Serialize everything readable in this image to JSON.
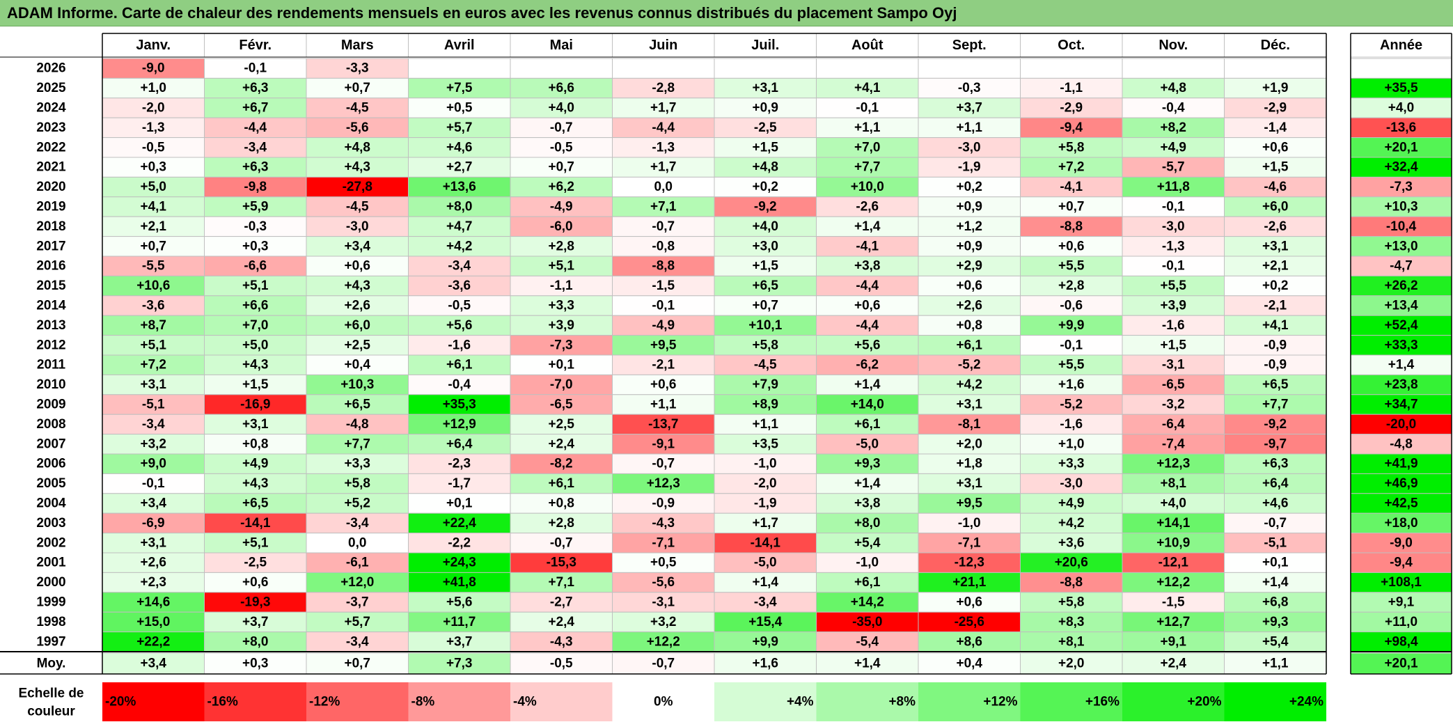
{
  "title": "ADAM Informe. Carte de chaleur des rendements mensuels en euros avec les revenus connus distribués du placement Sampo Oyj",
  "colors": {
    "negative_max": "#ff0000",
    "neutral": "#ffffff",
    "positive_max": "#00ee00",
    "title_bar": "#8fce82",
    "grid": "#bfbfbf"
  },
  "chart_data": {
    "type": "heatmap",
    "months": [
      "Janv.",
      "Févr.",
      "Mars",
      "Avril",
      "Mai",
      "Juin",
      "Juil.",
      "Août",
      "Sept.",
      "Oct.",
      "Nov.",
      "Déc."
    ],
    "year_header": "Année",
    "rows": [
      {
        "year": "2026",
        "values": [
          -9.0,
          -0.1,
          -3.3,
          null,
          null,
          null,
          null,
          null,
          null,
          null,
          null,
          null
        ],
        "annual": null
      },
      {
        "year": "2025",
        "values": [
          1.0,
          6.3,
          0.7,
          7.5,
          6.6,
          -2.8,
          3.1,
          4.1,
          -0.3,
          -1.1,
          4.8,
          1.9
        ],
        "annual": 35.5
      },
      {
        "year": "2024",
        "values": [
          -2.0,
          6.7,
          -4.5,
          0.5,
          4.0,
          1.7,
          0.9,
          -0.1,
          3.7,
          -2.9,
          -0.4,
          -2.9
        ],
        "annual": 4.0
      },
      {
        "year": "2023",
        "values": [
          -1.3,
          -4.4,
          -5.6,
          5.7,
          -0.7,
          -4.4,
          -2.5,
          1.1,
          1.1,
          -9.4,
          8.2,
          -1.4
        ],
        "annual": -13.6
      },
      {
        "year": "2022",
        "values": [
          -0.5,
          -3.4,
          4.8,
          4.6,
          -0.5,
          -1.3,
          1.5,
          7.0,
          -3.0,
          5.8,
          4.9,
          0.6
        ],
        "annual": 20.1
      },
      {
        "year": "2021",
        "values": [
          0.3,
          6.3,
          4.3,
          2.7,
          0.7,
          1.7,
          4.8,
          7.7,
          -1.9,
          7.2,
          -5.7,
          1.5
        ],
        "annual": 32.4
      },
      {
        "year": "2020",
        "values": [
          5.0,
          -9.8,
          -27.8,
          13.6,
          6.2,
          0.0,
          0.2,
          10.0,
          0.2,
          -4.1,
          11.8,
          -4.6
        ],
        "annual": -7.3
      },
      {
        "year": "2019",
        "values": [
          4.1,
          5.9,
          -4.5,
          8.0,
          -4.9,
          7.1,
          -9.2,
          -2.6,
          0.9,
          0.7,
          -0.1,
          6.0
        ],
        "annual": 10.3
      },
      {
        "year": "2018",
        "values": [
          2.1,
          -0.3,
          -3.0,
          4.7,
          -6.0,
          -0.7,
          4.0,
          1.4,
          1.2,
          -8.8,
          -3.0,
          -2.6
        ],
        "annual": -10.4
      },
      {
        "year": "2017",
        "values": [
          0.7,
          0.3,
          3.4,
          4.2,
          2.8,
          -0.8,
          3.0,
          -4.1,
          0.9,
          0.6,
          -1.3,
          3.1
        ],
        "annual": 13.0
      },
      {
        "year": "2016",
        "values": [
          -5.5,
          -6.6,
          0.6,
          -3.4,
          5.1,
          -8.8,
          1.5,
          3.8,
          2.9,
          5.5,
          -0.1,
          2.1
        ],
        "annual": -4.7
      },
      {
        "year": "2015",
        "values": [
          10.6,
          5.1,
          4.3,
          -3.6,
          -1.1,
          -1.5,
          6.5,
          -4.4,
          0.6,
          2.8,
          5.5,
          0.2
        ],
        "annual": 26.2
      },
      {
        "year": "2014",
        "values": [
          -3.6,
          6.6,
          2.6,
          -0.5,
          3.3,
          -0.1,
          0.7,
          0.6,
          2.6,
          -0.6,
          3.9,
          -2.1
        ],
        "annual": 13.4
      },
      {
        "year": "2013",
        "values": [
          8.7,
          7.0,
          6.0,
          5.6,
          3.9,
          -4.9,
          10.1,
          -4.4,
          0.8,
          9.9,
          -1.6,
          4.1
        ],
        "annual": 52.4
      },
      {
        "year": "2012",
        "values": [
          5.1,
          5.0,
          2.5,
          -1.6,
          -7.3,
          9.5,
          5.8,
          5.6,
          6.1,
          -0.1,
          1.5,
          -0.9
        ],
        "annual": 33.3
      },
      {
        "year": "2011",
        "values": [
          7.2,
          4.3,
          0.4,
          6.1,
          0.1,
          -2.1,
          -4.5,
          -6.2,
          -5.2,
          5.5,
          -3.1,
          -0.9
        ],
        "annual": 1.4
      },
      {
        "year": "2010",
        "values": [
          3.1,
          1.5,
          10.3,
          -0.4,
          -7.0,
          0.6,
          7.9,
          1.4,
          4.2,
          1.6,
          -6.5,
          6.5
        ],
        "annual": 23.8
      },
      {
        "year": "2009",
        "values": [
          -5.1,
          -16.9,
          6.5,
          35.3,
          -6.5,
          1.1,
          8.9,
          14.0,
          3.1,
          -5.2,
          -3.2,
          7.7
        ],
        "annual": 34.7
      },
      {
        "year": "2008",
        "values": [
          -3.4,
          3.1,
          -4.8,
          12.9,
          2.5,
          -13.7,
          1.1,
          6.1,
          -8.1,
          -1.6,
          -6.4,
          -9.2
        ],
        "annual": -20.0
      },
      {
        "year": "2007",
        "values": [
          3.2,
          0.8,
          7.7,
          6.4,
          2.4,
          -9.1,
          3.5,
          -5.0,
          2.0,
          1.0,
          -7.4,
          -9.7
        ],
        "annual": -4.8
      },
      {
        "year": "2006",
        "values": [
          9.0,
          4.9,
          3.3,
          -2.3,
          -8.2,
          -0.7,
          -1.0,
          9.3,
          1.8,
          3.3,
          12.3,
          6.3
        ],
        "annual": 41.9
      },
      {
        "year": "2005",
        "values": [
          -0.1,
          4.3,
          5.8,
          -1.7,
          6.1,
          12.3,
          -2.0,
          1.4,
          3.1,
          -3.0,
          8.1,
          6.4
        ],
        "annual": 46.9
      },
      {
        "year": "2004",
        "values": [
          3.4,
          6.5,
          5.2,
          0.1,
          0.8,
          -0.9,
          -1.9,
          3.8,
          9.5,
          4.9,
          4.0,
          4.6
        ],
        "annual": 42.5
      },
      {
        "year": "2003",
        "values": [
          -6.9,
          -14.1,
          -3.4,
          22.4,
          2.8,
          -4.3,
          1.7,
          8.0,
          -1.0,
          4.2,
          14.1,
          -0.7
        ],
        "annual": 18.0
      },
      {
        "year": "2002",
        "values": [
          3.1,
          5.1,
          0.0,
          -2.2,
          -0.7,
          -7.1,
          -14.1,
          5.4,
          -7.1,
          3.6,
          10.9,
          -5.1
        ],
        "annual": -9.0
      },
      {
        "year": "2001",
        "values": [
          2.6,
          -2.5,
          -6.1,
          24.3,
          -15.3,
          0.5,
          -5.0,
          -1.0,
          -12.3,
          20.6,
          -12.1,
          0.1
        ],
        "annual": -9.4
      },
      {
        "year": "2000",
        "values": [
          2.3,
          0.6,
          12.0,
          41.8,
          7.1,
          -5.6,
          1.4,
          6.1,
          21.1,
          -8.8,
          12.2,
          1.4
        ],
        "annual": 108.1
      },
      {
        "year": "1999",
        "values": [
          14.6,
          -19.3,
          -3.7,
          5.6,
          -2.7,
          -3.1,
          -3.4,
          14.2,
          0.6,
          5.8,
          -1.5,
          6.8
        ],
        "annual": 9.1
      },
      {
        "year": "1998",
        "values": [
          15.0,
          3.7,
          5.7,
          11.7,
          2.4,
          3.2,
          15.4,
          -35.0,
          -25.6,
          8.3,
          12.7,
          9.3
        ],
        "annual": 11.0
      },
      {
        "year": "1997",
        "values": [
          22.2,
          8.0,
          -3.4,
          3.7,
          -4.3,
          12.2,
          9.9,
          -5.4,
          8.6,
          8.1,
          9.1,
          5.4
        ],
        "annual": 98.4
      }
    ],
    "average": {
      "label": "Moy.",
      "values": [
        3.4,
        0.3,
        0.7,
        7.3,
        -0.5,
        -0.7,
        1.6,
        1.4,
        0.4,
        2.0,
        2.4,
        1.1
      ],
      "annual": 20.1
    },
    "scale": {
      "label_line1": "Echelle de",
      "label_line2": "couleur",
      "stops": [
        {
          "label": "-20%",
          "value": -20
        },
        {
          "label": "-16%",
          "value": -16
        },
        {
          "label": "-12%",
          "value": -12
        },
        {
          "label": "-8%",
          "value": -8
        },
        {
          "label": "-4%",
          "value": -4
        },
        {
          "label": "0%",
          "value": 0
        },
        {
          "label": "+4%",
          "value": 4
        },
        {
          "label": "+8%",
          "value": 8
        },
        {
          "label": "+12%",
          "value": 12
        },
        {
          "label": "+16%",
          "value": 16
        },
        {
          "label": "+20%",
          "value": 20
        },
        {
          "label": "+24%",
          "value": 24
        }
      ]
    }
  }
}
